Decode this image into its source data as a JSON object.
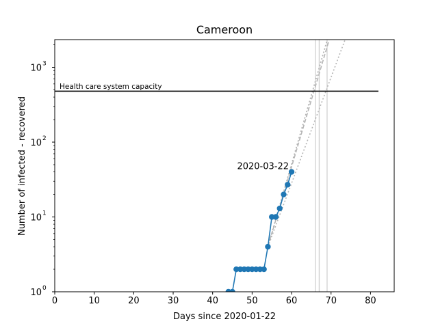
{
  "chart_data": {
    "type": "line",
    "title": "Cameroon",
    "xlabel": "Days since 2020-01-22",
    "ylabel": "Number of infected - recovered",
    "xlim": [
      0,
      86
    ],
    "ylim_log10": [
      0,
      3.37
    ],
    "yscale": "log",
    "x_ticks": [
      0,
      10,
      20,
      30,
      40,
      50,
      60,
      70,
      80
    ],
    "x_tick_labels": [
      "0",
      "10",
      "20",
      "30",
      "40",
      "50",
      "60",
      "70",
      "80"
    ],
    "y_ticks": [
      1,
      10,
      100,
      1000
    ],
    "y_tick_labels": [
      {
        "base": "10",
        "exp": "0"
      },
      {
        "base": "10",
        "exp": "1"
      },
      {
        "base": "10",
        "exp": "2"
      },
      {
        "base": "10",
        "exp": "3"
      }
    ],
    "capacity": {
      "label": "Health care system capacity",
      "value": 480,
      "x_start": 0,
      "x_end": 82
    },
    "annotation": {
      "text": "2020-03-22",
      "x": 60,
      "y": 40
    },
    "series": [
      {
        "name": "infected - recovered",
        "color": "#1f77b4",
        "x": [
          44,
          45,
          46,
          47,
          48,
          49,
          50,
          51,
          52,
          53,
          54,
          55,
          56,
          57,
          58,
          59,
          60
        ],
        "y": [
          1,
          1,
          2,
          2,
          2,
          2,
          2,
          2,
          2,
          2,
          4,
          10,
          10,
          13,
          20,
          27,
          40
        ]
      }
    ],
    "fit_lines": [
      {
        "style": "dashed",
        "x": [
          54,
          69.5
        ],
        "y": [
          4,
          2300
        ]
      },
      {
        "style": "dotted",
        "x": [
          54,
          69
        ],
        "y": [
          4,
          2300
        ]
      },
      {
        "style": "dotted",
        "x": [
          54,
          73.5
        ],
        "y": [
          4,
          2300
        ]
      },
      {
        "style": "dotted",
        "x": [
          54,
          69
        ],
        "y": [
          4,
          2300
        ]
      }
    ],
    "vertical_lines": [
      66,
      67,
      69
    ]
  }
}
